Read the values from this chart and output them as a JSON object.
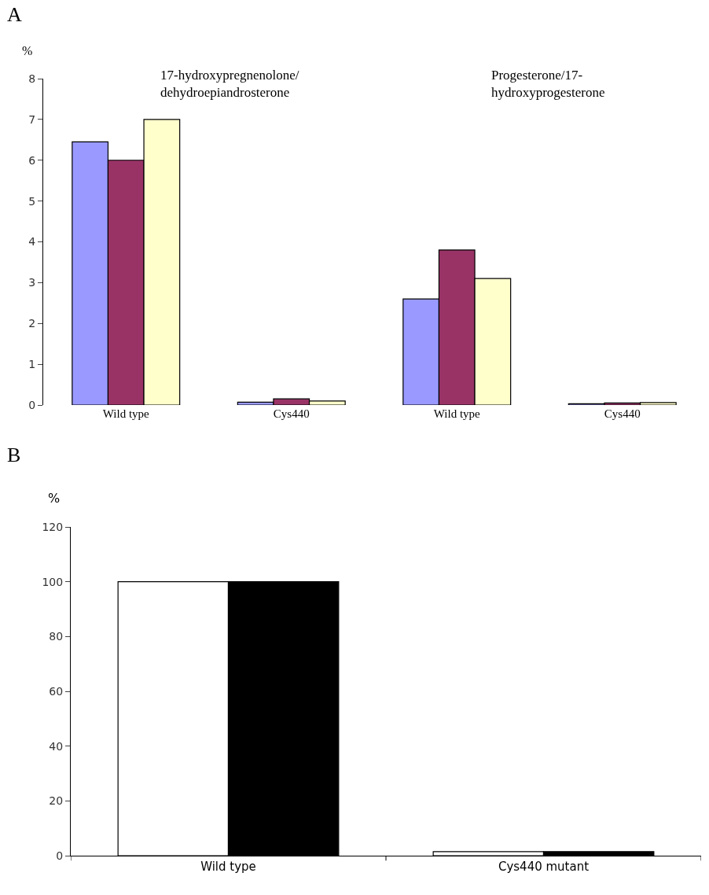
{
  "chart_data": [
    {
      "type": "bar",
      "title": "A",
      "ylabel": "%",
      "categories": [
        "Wild type",
        "Cys440",
        "Wild type",
        "Cys440"
      ],
      "annotations": [
        "17-hydroxypregnenolone/\ndehydroepiandrosterone",
        "Progesterone/17-\nhydroxyprogesterone"
      ],
      "series": [
        {
          "color": "#9999ff",
          "values": [
            6.45,
            0.07,
            2.6,
            0.03
          ]
        },
        {
          "color": "#993366",
          "values": [
            6.0,
            0.15,
            3.8,
            0.05
          ]
        },
        {
          "color": "#ffffcc",
          "values": [
            7.0,
            0.1,
            3.1,
            0.06
          ]
        }
      ],
      "ylim": [
        0,
        8
      ],
      "yticks": [
        0,
        1,
        2,
        3,
        4,
        5,
        6,
        7,
        8
      ],
      "grid": false
    },
    {
      "type": "bar",
      "title": "B",
      "ylabel": "%",
      "categories": [
        "Wild type",
        "Cys440 mutant"
      ],
      "series": [
        {
          "color": "#ffffff",
          "values": [
            100,
            1.5
          ]
        },
        {
          "color": "#000000",
          "values": [
            100,
            1.5
          ]
        }
      ],
      "ylim": [
        0,
        120
      ],
      "yticks": [
        0,
        20,
        40,
        60,
        80,
        100,
        120
      ],
      "grid": false
    }
  ]
}
